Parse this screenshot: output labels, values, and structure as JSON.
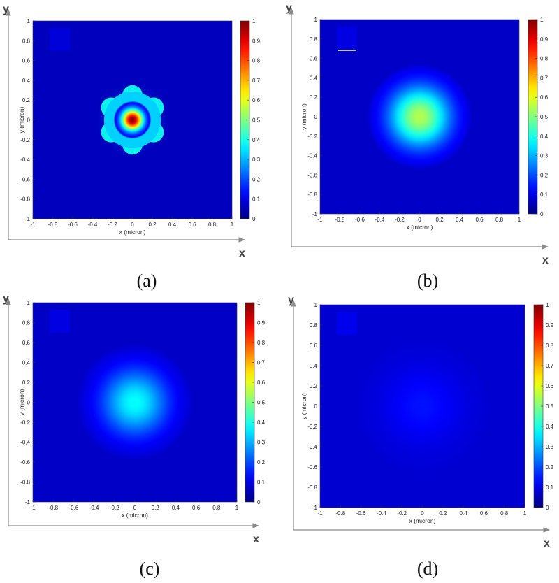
{
  "chart_data": [
    {
      "type": "heatmap",
      "caption": "(a)",
      "xlabel": "x (micron)",
      "ylabel": "y (micron)",
      "xlim": [
        -1,
        1
      ],
      "ylim": [
        -1,
        1
      ],
      "xticks": [
        "-1",
        "-0.8",
        "-0.6",
        "-0.4",
        "-0.2",
        "0",
        "0.2",
        "0.4",
        "0.6",
        "0.8",
        "1"
      ],
      "yticks": [
        "1",
        "0.8",
        "0.6",
        "0.4",
        "0.2",
        "0",
        "-0.2",
        "-0.4",
        "-0.6",
        "-0.8",
        "-1"
      ],
      "colorbar_ticks": [
        "1",
        "0.9",
        "0.8",
        "0.7",
        "0.6",
        "0.5",
        "0.4",
        "0.3",
        "0.2",
        "0.1",
        "0"
      ],
      "colorbar_range": [
        0,
        1
      ],
      "colormap": "jet",
      "peak_value": 1.0,
      "peak_center": [
        0,
        0
      ],
      "spot_radius_micron": 0.18,
      "ring": {
        "radius_micron": 0.3,
        "lobes": 6,
        "value": 0.33
      },
      "background_value": 0.06
    },
    {
      "type": "heatmap",
      "caption": "(b)",
      "xlabel": "x (micron)",
      "ylabel": "y (micron)",
      "xlim": [
        -1,
        1
      ],
      "ylim": [
        -1,
        1
      ],
      "xticks": [
        "-1",
        "-0.8",
        "-0.6",
        "-0.4",
        "-0.2",
        "0",
        "0.2",
        "0.4",
        "0.6",
        "0.8",
        "1"
      ],
      "yticks": [
        "1",
        "0.8",
        "0.6",
        "0.4",
        "0.2",
        "0",
        "-0.2",
        "-0.4",
        "-0.6",
        "-0.8",
        "-1"
      ],
      "colorbar_ticks": [
        "1",
        "0.9",
        "0.8",
        "0.7",
        "0.6",
        "0.5",
        "0.4",
        "0.3",
        "0.2",
        "0.1",
        "0"
      ],
      "colorbar_range": [
        0,
        1
      ],
      "colormap": "jet",
      "peak_value": 0.55,
      "peak_center": [
        0,
        0
      ],
      "spot_radius_micron": 0.28,
      "background_value": 0.07
    },
    {
      "type": "heatmap",
      "caption": "(c)",
      "xlabel": "x (micron)",
      "ylabel": "y (micron)",
      "xlim": [
        -1,
        1
      ],
      "ylim": [
        -1,
        1
      ],
      "xticks": [
        "-1",
        "-0.8",
        "-0.6",
        "-0.4",
        "-0.2",
        "0",
        "0.2",
        "0.4",
        "0.6",
        "0.8",
        "1"
      ],
      "yticks": [
        "1",
        "0.8",
        "0.6",
        "0.4",
        "0.2",
        "0",
        "-0.2",
        "-0.4",
        "-0.6",
        "-0.8",
        "-1"
      ],
      "colorbar_ticks": [
        "1",
        "0.9",
        "0.8",
        "0.7",
        "0.6",
        "0.5",
        "0.4",
        "0.3",
        "0.2",
        "0.1",
        "0"
      ],
      "colorbar_range": [
        0,
        1
      ],
      "colormap": "jet",
      "peak_value": 0.38,
      "peak_center": [
        0,
        0
      ],
      "spot_radius_micron": 0.3,
      "background_value": 0.07
    },
    {
      "type": "heatmap",
      "caption": "(d)",
      "xlabel": "x (micron)",
      "ylabel": "y (micron)",
      "xlim": [
        -1,
        1
      ],
      "ylim": [
        -1,
        1
      ],
      "xticks": [
        "-1",
        "-0.8",
        "-0.6",
        "-0.4",
        "-0.2",
        "0",
        "0.2",
        "0.4",
        "0.6",
        "0.8",
        "1"
      ],
      "yticks": [
        "1",
        "0.8",
        "0.6",
        "0.4",
        "0.2",
        "0",
        "-0.2",
        "-0.4",
        "-0.6",
        "-0.8",
        "-1"
      ],
      "colorbar_ticks": [
        "1",
        "0.9",
        "0.8",
        "0.7",
        "0.6",
        "0.5",
        "0.4",
        "0.3",
        "0.2",
        "0.1",
        "0"
      ],
      "colorbar_range": [
        0,
        1
      ],
      "colormap": "jet",
      "peak_value": 0.14,
      "peak_center": [
        0,
        0
      ],
      "spot_radius_micron": 0.35,
      "background_value": 0.08
    }
  ],
  "outer_axes": {
    "x_label": "x",
    "y_label": "y"
  },
  "colors": {
    "axis": "#8a8a8a",
    "frame": "#333333"
  }
}
